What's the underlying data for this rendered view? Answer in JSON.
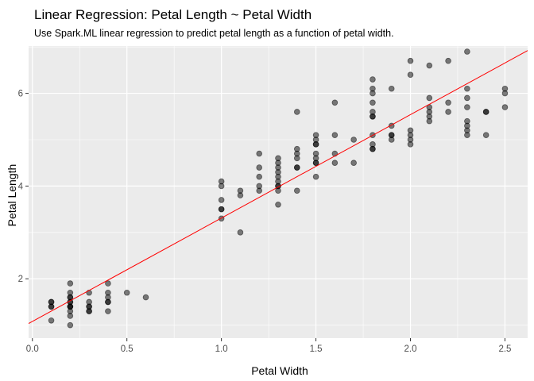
{
  "chart_data": {
    "type": "scatter",
    "title": "Linear Regression: Petal Length ~ Petal Width",
    "subtitle": "Use Spark.ML linear regression to predict petal length as a function of petal width.",
    "xlabel": "Petal Width",
    "ylabel": "Petal Length",
    "xlim": [
      -0.02,
      2.62
    ],
    "ylim": [
      0.72,
      7.02
    ],
    "x_ticks": [
      0.0,
      0.5,
      1.0,
      1.5,
      2.0,
      2.5
    ],
    "x_tick_labels": [
      "0.0",
      "0.5",
      "1.0",
      "1.5",
      "2.0",
      "2.5"
    ],
    "y_ticks": [
      2,
      4,
      6
    ],
    "y_tick_labels": [
      "2",
      "4",
      "6"
    ],
    "grid": true,
    "background": "#ebebeb",
    "point_color": "#000000",
    "point_alpha": 0.5,
    "line_color": "#ff0000",
    "regression_line": {
      "intercept": 1.08,
      "slope": 2.23
    },
    "points": [
      [
        0.1,
        1.1
      ],
      [
        0.1,
        1.4
      ],
      [
        0.1,
        1.5
      ],
      [
        0.1,
        1.5
      ],
      [
        0.1,
        1.4
      ],
      [
        0.2,
        1.0
      ],
      [
        0.2,
        1.2
      ],
      [
        0.2,
        1.3
      ],
      [
        0.2,
        1.4
      ],
      [
        0.2,
        1.4
      ],
      [
        0.2,
        1.4
      ],
      [
        0.2,
        1.5
      ],
      [
        0.2,
        1.5
      ],
      [
        0.2,
        1.6
      ],
      [
        0.2,
        1.6
      ],
      [
        0.2,
        1.7
      ],
      [
        0.2,
        1.9
      ],
      [
        0.3,
        1.3
      ],
      [
        0.3,
        1.4
      ],
      [
        0.3,
        1.4
      ],
      [
        0.3,
        1.5
      ],
      [
        0.3,
        1.7
      ],
      [
        0.3,
        1.3
      ],
      [
        0.4,
        1.3
      ],
      [
        0.4,
        1.5
      ],
      [
        0.4,
        1.5
      ],
      [
        0.4,
        1.6
      ],
      [
        0.4,
        1.7
      ],
      [
        0.4,
        1.9
      ],
      [
        0.5,
        1.7
      ],
      [
        0.6,
        1.6
      ],
      [
        1.0,
        3.3
      ],
      [
        1.0,
        3.5
      ],
      [
        1.0,
        3.5
      ],
      [
        1.0,
        3.7
      ],
      [
        1.0,
        4.0
      ],
      [
        1.0,
        4.1
      ],
      [
        1.1,
        3.0
      ],
      [
        1.1,
        3.8
      ],
      [
        1.1,
        3.9
      ],
      [
        1.2,
        3.9
      ],
      [
        1.2,
        4.0
      ],
      [
        1.2,
        4.2
      ],
      [
        1.2,
        4.4
      ],
      [
        1.2,
        4.7
      ],
      [
        1.3,
        3.6
      ],
      [
        1.3,
        3.9
      ],
      [
        1.3,
        4.0
      ],
      [
        1.3,
        4.0
      ],
      [
        1.3,
        4.1
      ],
      [
        1.3,
        4.2
      ],
      [
        1.3,
        4.3
      ],
      [
        1.3,
        4.4
      ],
      [
        1.3,
        4.5
      ],
      [
        1.3,
        4.6
      ],
      [
        1.4,
        3.9
      ],
      [
        1.4,
        4.4
      ],
      [
        1.4,
        4.4
      ],
      [
        1.4,
        4.6
      ],
      [
        1.4,
        4.7
      ],
      [
        1.4,
        4.8
      ],
      [
        1.4,
        5.6
      ],
      [
        1.5,
        4.2
      ],
      [
        1.5,
        4.5
      ],
      [
        1.5,
        4.5
      ],
      [
        1.5,
        4.6
      ],
      [
        1.5,
        4.7
      ],
      [
        1.5,
        4.9
      ],
      [
        1.5,
        4.9
      ],
      [
        1.5,
        5.0
      ],
      [
        1.5,
        5.1
      ],
      [
        1.6,
        4.5
      ],
      [
        1.6,
        4.7
      ],
      [
        1.6,
        5.1
      ],
      [
        1.6,
        5.8
      ],
      [
        1.7,
        4.5
      ],
      [
        1.7,
        5.0
      ],
      [
        1.8,
        4.8
      ],
      [
        1.8,
        4.8
      ],
      [
        1.8,
        4.9
      ],
      [
        1.8,
        5.1
      ],
      [
        1.8,
        5.5
      ],
      [
        1.8,
        5.5
      ],
      [
        1.8,
        5.6
      ],
      [
        1.8,
        5.8
      ],
      [
        1.8,
        6.0
      ],
      [
        1.8,
        6.1
      ],
      [
        1.8,
        6.3
      ],
      [
        1.9,
        5.0
      ],
      [
        1.9,
        5.1
      ],
      [
        1.9,
        5.1
      ],
      [
        1.9,
        5.3
      ],
      [
        1.9,
        6.1
      ],
      [
        2.0,
        4.9
      ],
      [
        2.0,
        5.0
      ],
      [
        2.0,
        5.1
      ],
      [
        2.0,
        5.2
      ],
      [
        2.0,
        6.4
      ],
      [
        2.0,
        6.7
      ],
      [
        2.1,
        5.4
      ],
      [
        2.1,
        5.5
      ],
      [
        2.1,
        5.6
      ],
      [
        2.1,
        5.7
      ],
      [
        2.1,
        5.9
      ],
      [
        2.1,
        6.6
      ],
      [
        2.2,
        5.6
      ],
      [
        2.2,
        5.8
      ],
      [
        2.2,
        6.7
      ],
      [
        2.3,
        5.1
      ],
      [
        2.3,
        5.2
      ],
      [
        2.3,
        5.3
      ],
      [
        2.3,
        5.4
      ],
      [
        2.3,
        5.7
      ],
      [
        2.3,
        5.9
      ],
      [
        2.3,
        6.1
      ],
      [
        2.3,
        6.9
      ],
      [
        2.4,
        5.1
      ],
      [
        2.4,
        5.6
      ],
      [
        2.4,
        5.6
      ],
      [
        2.5,
        5.7
      ],
      [
        2.5,
        6.0
      ],
      [
        2.5,
        6.1
      ]
    ]
  }
}
